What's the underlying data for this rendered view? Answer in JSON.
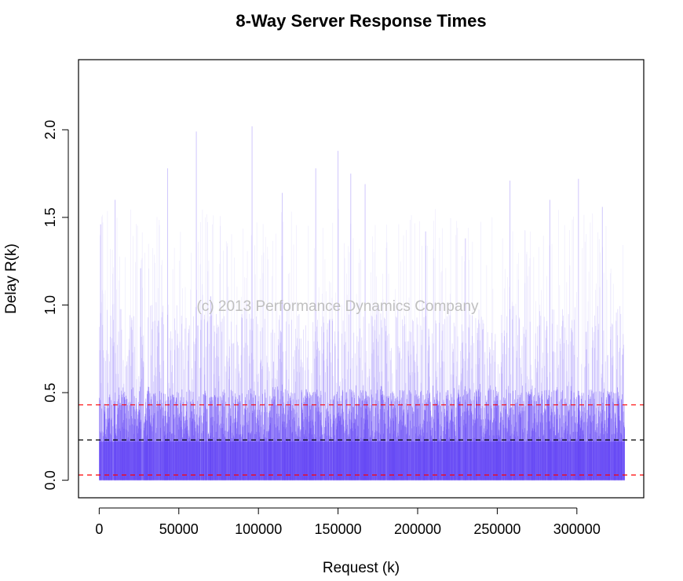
{
  "chart_data": {
    "type": "line",
    "title": "8-Way Server Response Times",
    "xlabel": "Request (k)",
    "ylabel": "Delay R(k)",
    "xlim": [
      -13000,
      342000
    ],
    "ylim": [
      -0.1,
      2.4
    ],
    "x_ticks": [
      0,
      50000,
      100000,
      150000,
      200000,
      250000,
      300000
    ],
    "x_tick_labels": [
      "0",
      "50000",
      "100000",
      "150000",
      "200000",
      "250000",
      "300000"
    ],
    "y_ticks": [
      0.0,
      0.5,
      1.0,
      1.5,
      2.0
    ],
    "y_tick_labels": [
      "0.0",
      "0.5",
      "1.0",
      "1.5",
      "2.0"
    ],
    "series": [
      {
        "style": "dense vertical spikes",
        "color": "#5b3cf5",
        "x_range": [
          0,
          330000
        ],
        "typical_range": [
          0.0,
          0.5
        ],
        "peaks": [
          {
            "x": 900,
            "y": 1.46
          },
          {
            "x": 10000,
            "y": 1.6
          },
          {
            "x": 26000,
            "y": 1.21
          },
          {
            "x": 43000,
            "y": 1.78
          },
          {
            "x": 61000,
            "y": 1.99
          },
          {
            "x": 70000,
            "y": 1.05
          },
          {
            "x": 96000,
            "y": 2.02
          },
          {
            "x": 115000,
            "y": 1.64
          },
          {
            "x": 136000,
            "y": 1.78
          },
          {
            "x": 150000,
            "y": 1.88
          },
          {
            "x": 158000,
            "y": 1.75
          },
          {
            "x": 167000,
            "y": 1.69
          },
          {
            "x": 205000,
            "y": 1.42
          },
          {
            "x": 230000,
            "y": 1.38
          },
          {
            "x": 258000,
            "y": 1.71
          },
          {
            "x": 283000,
            "y": 1.6
          },
          {
            "x": 301000,
            "y": 1.72
          },
          {
            "x": 316000,
            "y": 1.56
          }
        ]
      }
    ],
    "reference_lines": [
      {
        "y": 0.43,
        "color": "#ff0000",
        "style": "dashed"
      },
      {
        "y": 0.23,
        "color": "#000000",
        "style": "dashed"
      },
      {
        "y": 0.03,
        "color": "#ff0000",
        "style": "dashed"
      }
    ],
    "watermark": "(c) 2013 Performance Dynamics Company",
    "grid": false,
    "legend": "none"
  }
}
